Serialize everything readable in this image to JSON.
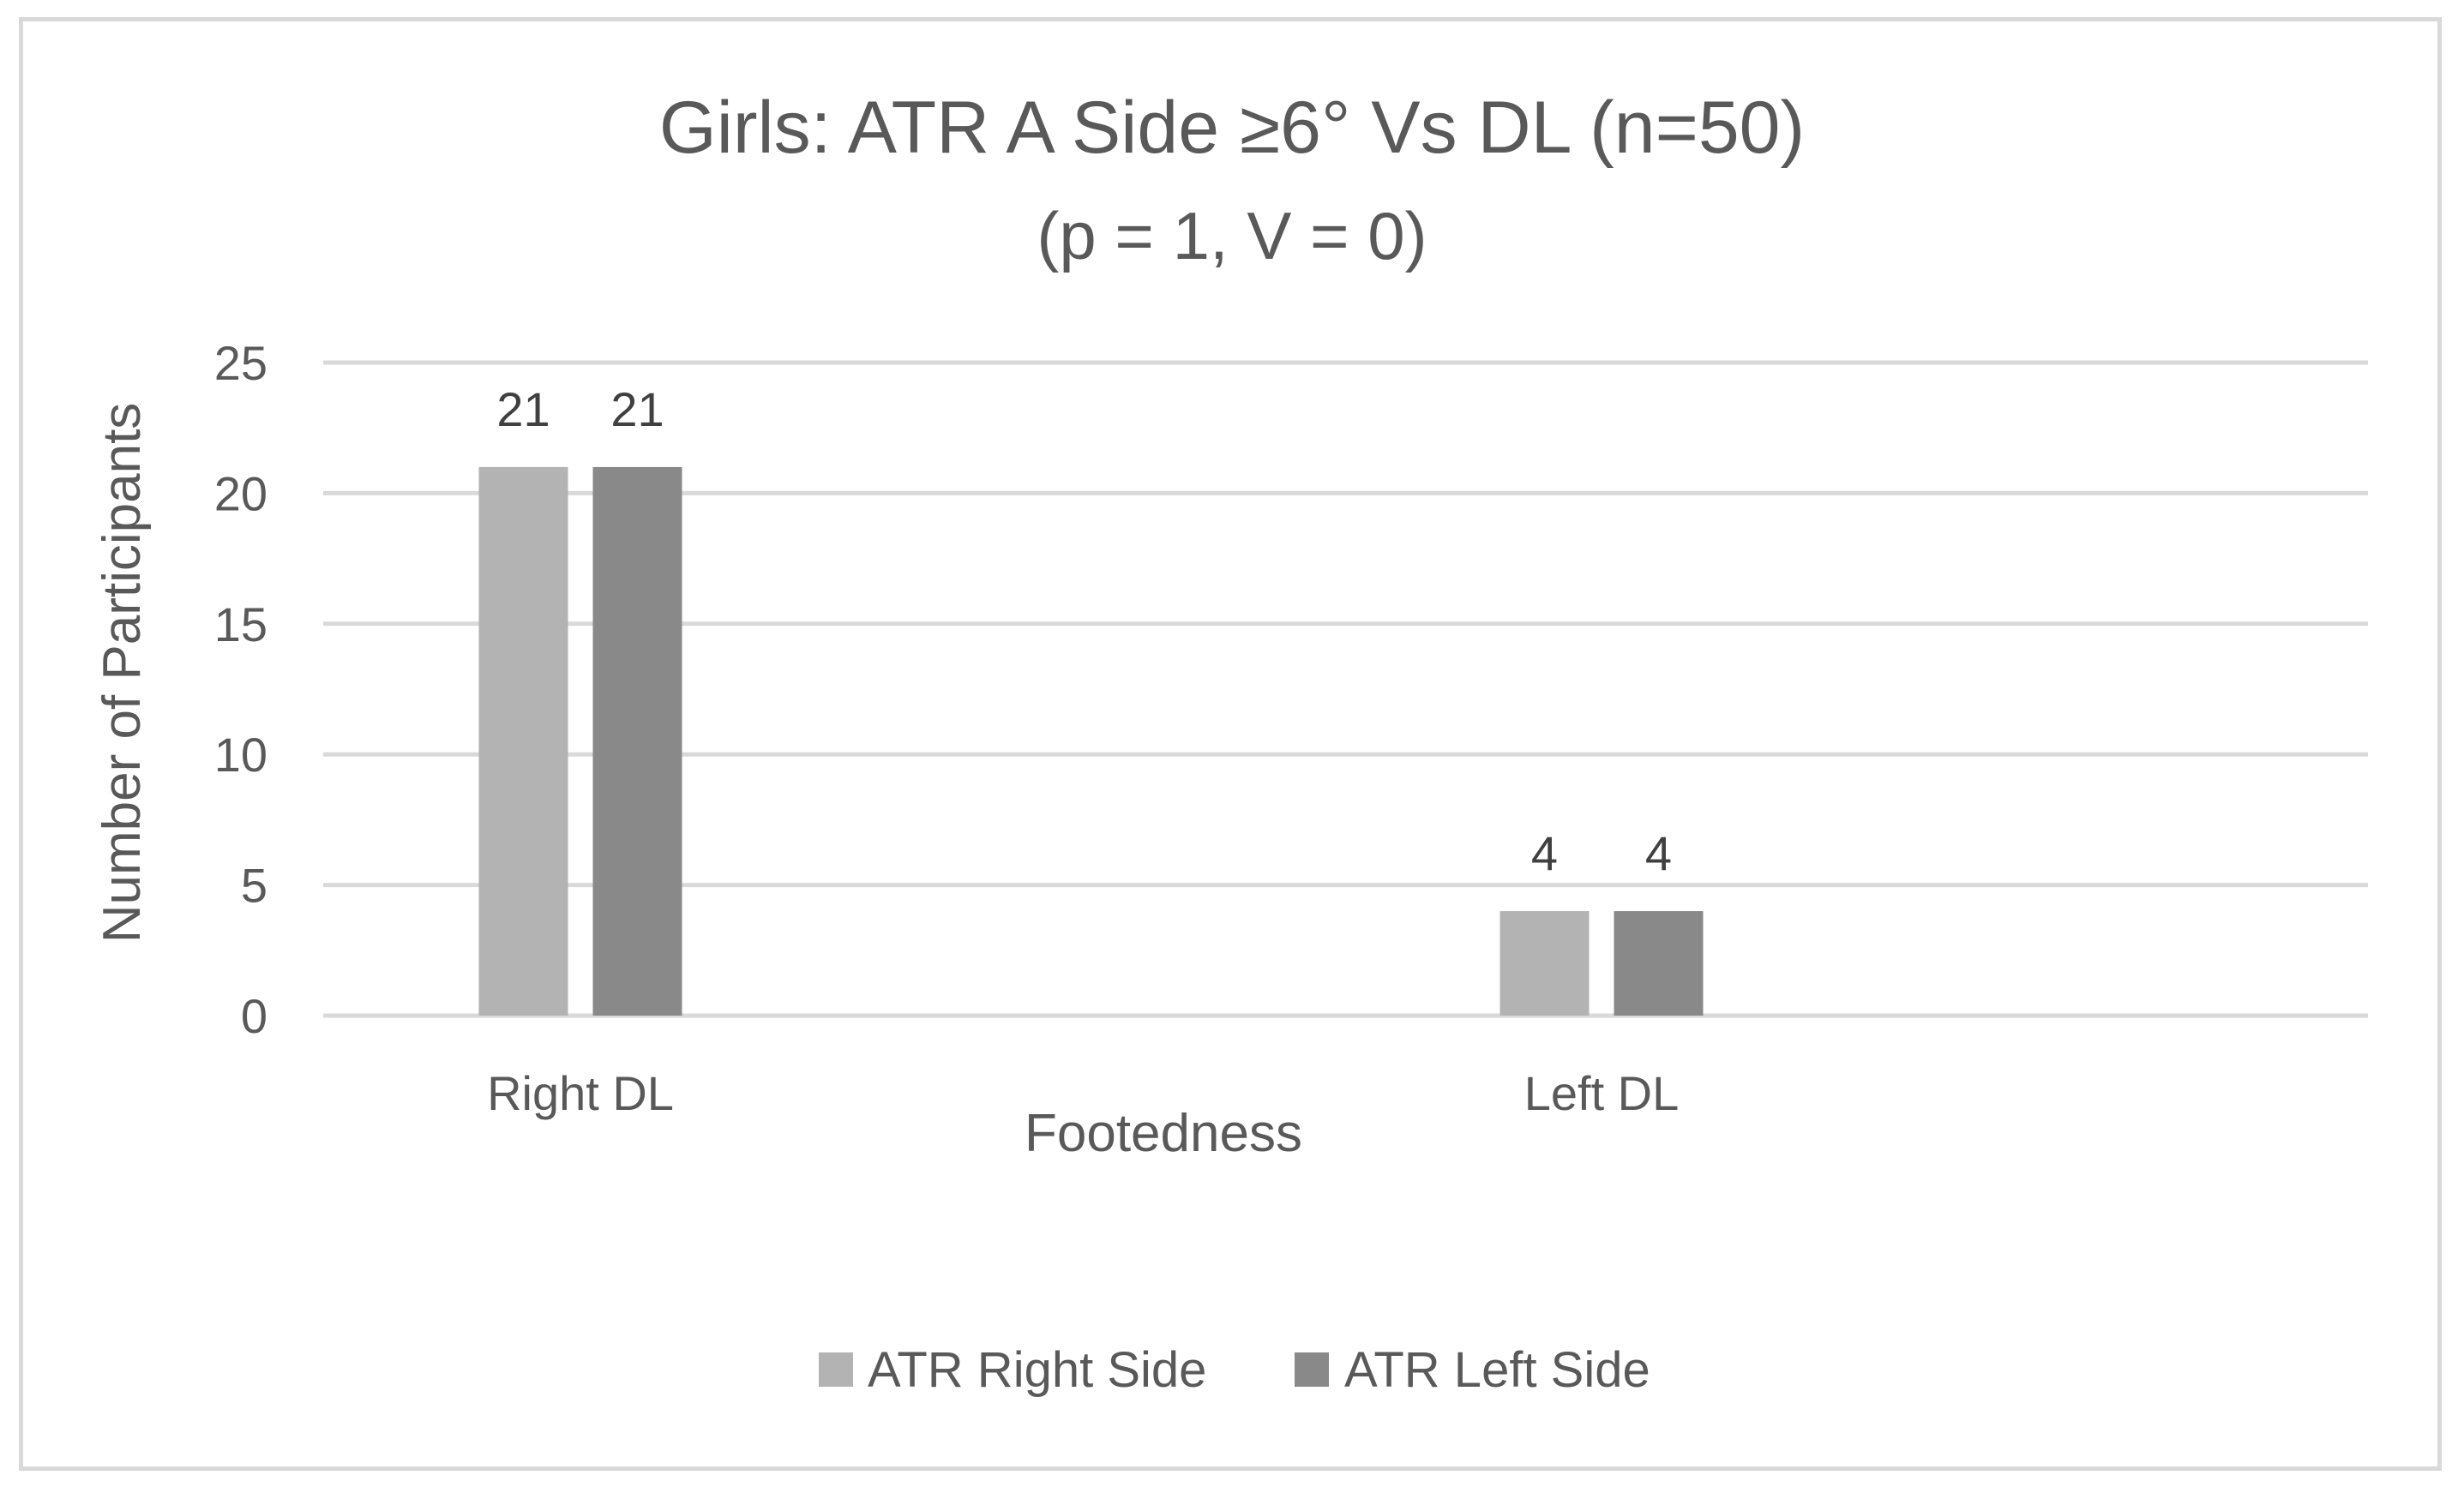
{
  "chart_data": {
    "type": "bar",
    "title": "Girls: ATR A Side ≥6° Vs DL (n=50)",
    "subtitle": "(p = 1, V = 0)",
    "xlabel": "Footedness",
    "ylabel": "Number of Participants",
    "categories": [
      "Right DL",
      "Left DL"
    ],
    "series": [
      {
        "name": "ATR Right Side",
        "values": [
          21,
          4
        ],
        "color": "#b3b3b3"
      },
      {
        "name": "ATR Left Side",
        "values": [
          21,
          4
        ],
        "color": "#898989"
      }
    ],
    "ylim": [
      0,
      25
    ],
    "yticks": [
      0,
      5,
      10,
      15,
      20,
      25
    ],
    "grid": true,
    "legend_position": "bottom"
  }
}
